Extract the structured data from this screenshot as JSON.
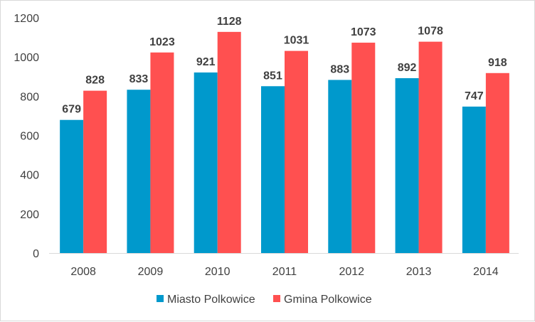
{
  "chart_data": {
    "type": "bar",
    "title": "",
    "xlabel": "",
    "ylabel": "",
    "categories": [
      "2008",
      "2009",
      "2010",
      "2011",
      "2012",
      "2013",
      "2014"
    ],
    "series": [
      {
        "name": "Miasto Polkowice",
        "color": "#0099cc",
        "values": [
          679,
          833,
          921,
          851,
          883,
          892,
          747
        ]
      },
      {
        "name": "Gmina Polkowice",
        "color": "#ff5050",
        "values": [
          828,
          1023,
          1128,
          1031,
          1073,
          1078,
          918
        ]
      }
    ],
    "ylim": [
      0,
      1200
    ],
    "yticks": [
      "0",
      "200",
      "400",
      "600",
      "800",
      "1000",
      "1200"
    ],
    "grid": false,
    "legend_position": "bottom",
    "data_labels": true
  }
}
